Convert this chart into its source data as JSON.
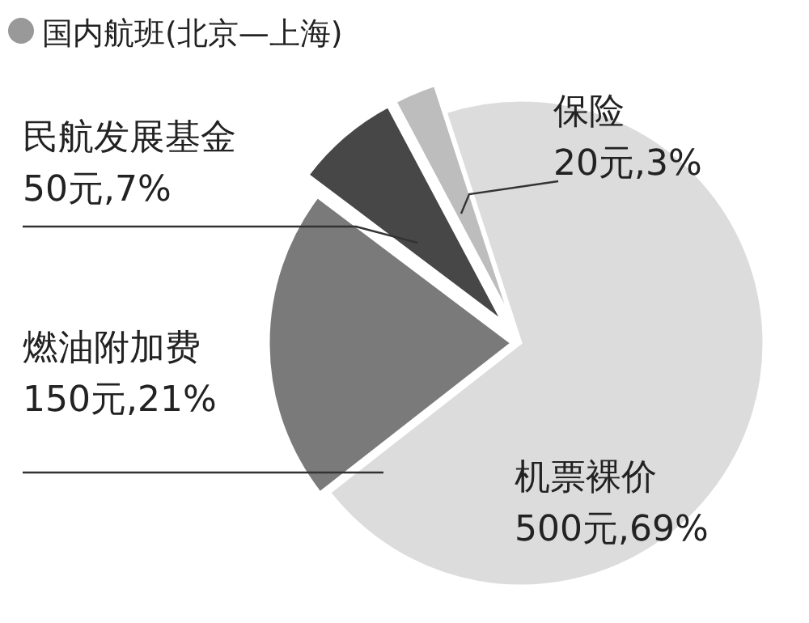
{
  "chart_data": {
    "type": "pie",
    "title": "国内航班(北京—上海)",
    "categories": [
      "机票裸价",
      "燃油附加费",
      "民航发展基金",
      "保险"
    ],
    "values": [
      500,
      150,
      50,
      20
    ],
    "value_labels": [
      "500元,69%",
      "150元,21%",
      "50元,7%",
      "20元,3%"
    ],
    "colors": [
      "#dcdcdc",
      "#7a7a7a",
      "#474747",
      "#bdbdbd"
    ]
  }
}
